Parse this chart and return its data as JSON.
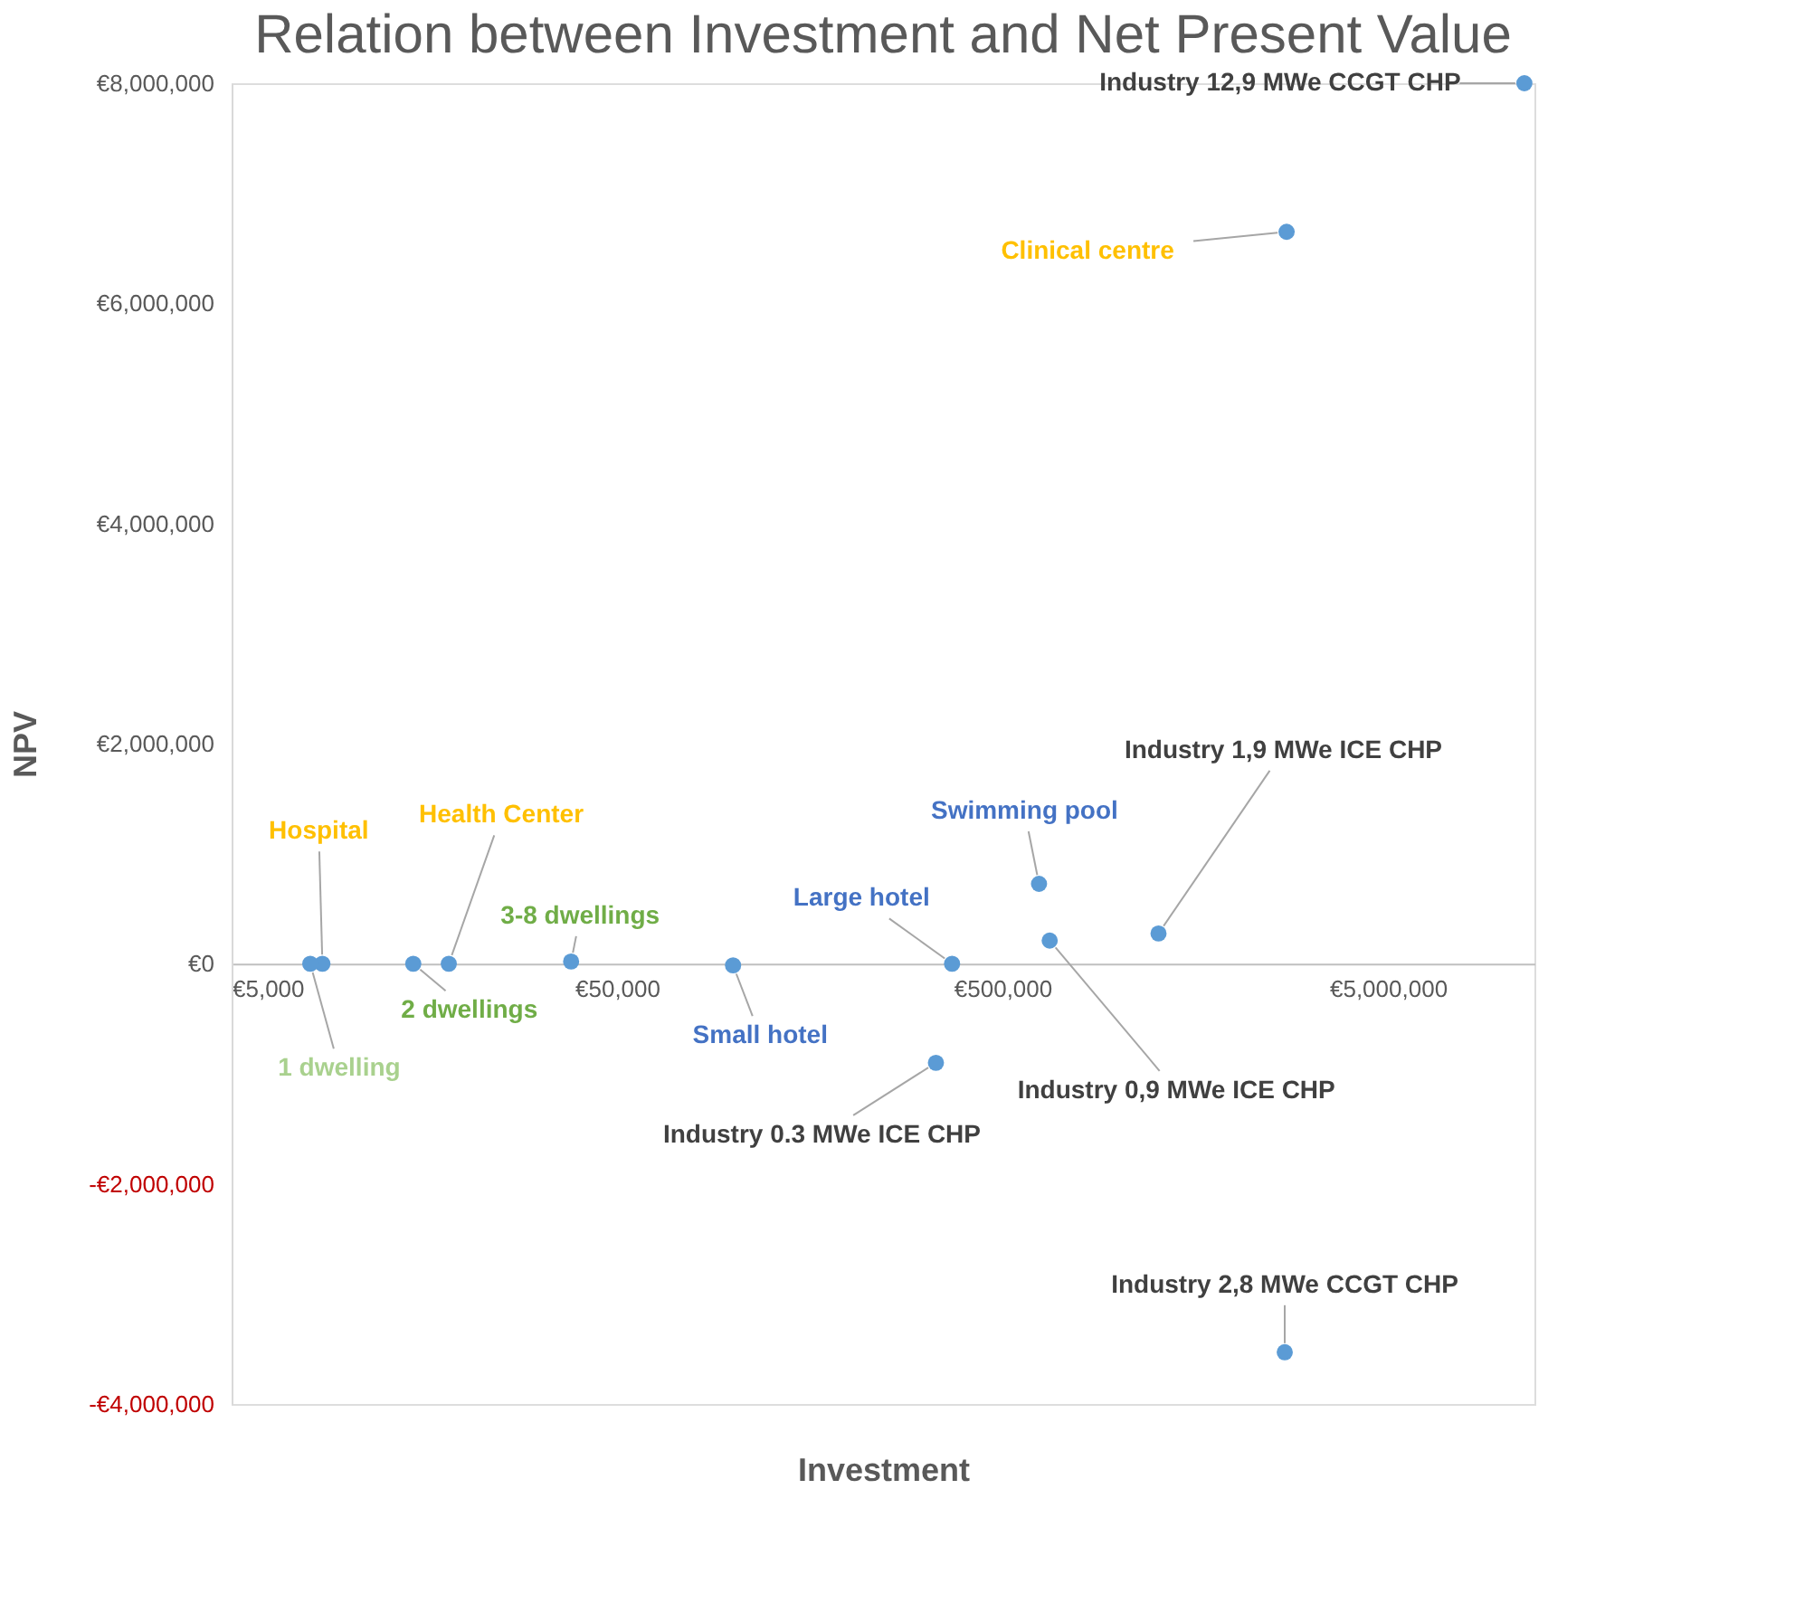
{
  "chart_data": {
    "type": "scatter",
    "title": "Relation between Investment and Net Present Value",
    "xlabel": "Investment",
    "ylabel": "NPV",
    "log": "x",
    "grid": false,
    "marker": "circle",
    "xlim": [
      5000,
      12000000
    ],
    "ylim": [
      -4000000,
      8000000
    ],
    "xticks": [
      {
        "value": 5000,
        "label": "€5,000"
      },
      {
        "value": 50000,
        "label": "€50,000"
      },
      {
        "value": 500000,
        "label": "€500,000"
      },
      {
        "value": 5000000,
        "label": "€5,000,000"
      }
    ],
    "yticks": [
      {
        "value": -4000000,
        "label": "-€4,000,000"
      },
      {
        "value": -2000000,
        "label": "-€2,000,000"
      },
      {
        "value": 0,
        "label": "€0"
      },
      {
        "value": 2000000,
        "label": "€2,000,000"
      },
      {
        "value": 4000000,
        "label": "€4,000,000"
      },
      {
        "value": 6000000,
        "label": "€6,000,000"
      },
      {
        "value": 8000000,
        "label": "€8,000,000"
      }
    ],
    "series": [
      {
        "color": "#5b9bd5",
        "x": [
          11300000,
          2730000,
          1270000,
          622000,
          663000,
          370000,
          336000,
          100000,
          38000,
          18300,
          14800,
          8600,
          8000,
          2700000
        ],
        "values": [
          8000000,
          6650000,
          275000,
          726000,
          210000,
          0,
          -900000,
          -15000,
          20000,
          0,
          0,
          0,
          0,
          -3530000
        ]
      }
    ],
    "annotations": [
      {
        "text": "Industry 12,9 MWe CCGT CHP",
        "x": 11300000,
        "y": 8000000
      },
      {
        "text": "Clinical centre",
        "x": 2730000,
        "y": 6650000
      },
      {
        "text": "Industry 1,9 MWe ICE CHP",
        "x": 1270000,
        "y": 275000
      },
      {
        "text": "Swimming pool",
        "x": 622000,
        "y": 726000
      },
      {
        "text": "Industry 0,9 MWe ICE CHP",
        "x": 663000,
        "y": 210000
      },
      {
        "text": "Large hotel",
        "x": 370000,
        "y": 0
      },
      {
        "text": "Industry 0.3 MWe ICE CHP",
        "x": 336000,
        "y": -900000
      },
      {
        "text": "Small hotel",
        "x": 100000,
        "y": -15000
      },
      {
        "text": "3-8 dwellings",
        "x": 38000,
        "y": 20000
      },
      {
        "text": "Health Center",
        "x": 18300,
        "y": 0
      },
      {
        "text": "2 dwellings",
        "x": 14800,
        "y": 0
      },
      {
        "text": "Hospital",
        "x": 8600,
        "y": 0
      },
      {
        "text": "1 dwelling",
        "x": 8000,
        "y": 0
      },
      {
        "text": "Industry 2,8 MWe CCGT CHP",
        "x": 2700000,
        "y": -3530000
      }
    ]
  }
}
